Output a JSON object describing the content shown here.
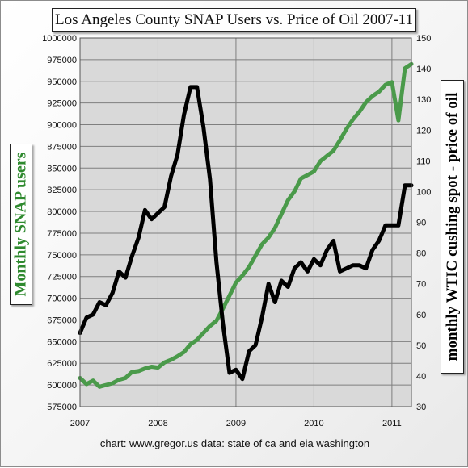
{
  "chart_data": {
    "type": "line",
    "title": "Los Angeles County SNAP Users vs. Price of Oil 2007-11",
    "ylabel_left": "Monthly SNAP users",
    "ylabel_right": "monthly WTIC cushing spot - price of oil",
    "xlabel": "",
    "credit": "chart: www.gregor.us   data: state of ca and eia washington",
    "x_tick_labels": [
      "2007",
      "2008",
      "2009",
      "2010",
      "2011"
    ],
    "y_left_ticks": [
      "575000",
      "600000",
      "625000",
      "650000",
      "675000",
      "700000",
      "725000",
      "750000",
      "775000",
      "800000",
      "825000",
      "850000",
      "875000",
      "900000",
      "925000",
      "950000",
      "975000",
      "1000000"
    ],
    "y_right_ticks": [
      "30",
      "40",
      "50",
      "60",
      "70",
      "80",
      "90",
      "100",
      "110",
      "120",
      "130",
      "140",
      "150"
    ],
    "ylim_left": [
      575000,
      1000000
    ],
    "ylim_right": [
      30,
      150
    ],
    "xlim": [
      2007.0,
      2011.25
    ],
    "grid": true,
    "colors": {
      "snap": "#4a9a4a",
      "oil": "#000000",
      "plot_bg": "#d9d9d9"
    },
    "series": [
      {
        "name": "Monthly SNAP users",
        "axis": "left",
        "x": [
          2007.0,
          2007.083,
          2007.167,
          2007.25,
          2007.333,
          2007.417,
          2007.5,
          2007.583,
          2007.667,
          2007.75,
          2007.833,
          2007.917,
          2008.0,
          2008.083,
          2008.167,
          2008.25,
          2008.333,
          2008.417,
          2008.5,
          2008.583,
          2008.667,
          2008.75,
          2008.833,
          2008.917,
          2009.0,
          2009.083,
          2009.167,
          2009.25,
          2009.333,
          2009.417,
          2009.5,
          2009.583,
          2009.667,
          2009.75,
          2009.833,
          2009.917,
          2010.0,
          2010.083,
          2010.167,
          2010.25,
          2010.333,
          2010.417,
          2010.5,
          2010.583,
          2010.667,
          2010.75,
          2010.833,
          2010.917,
          2011.0,
          2011.083,
          2011.167,
          2011.25
        ],
        "values": [
          608000,
          601000,
          605000,
          598000,
          600000,
          602000,
          606000,
          608000,
          615000,
          616000,
          619000,
          621000,
          620000,
          626000,
          629000,
          633000,
          638000,
          647000,
          652000,
          660000,
          668000,
          674000,
          688000,
          703000,
          718000,
          726000,
          736000,
          749000,
          762000,
          770000,
          781000,
          797000,
          813000,
          823000,
          838000,
          842000,
          846000,
          858000,
          864000,
          870000,
          882000,
          895000,
          906000,
          915000,
          926000,
          933000,
          938000,
          946000,
          949000,
          905000,
          965000,
          970000
        ]
      },
      {
        "name": "monthly WTIC cushing spot - price of oil",
        "axis": "right",
        "x": [
          2007.0,
          2007.083,
          2007.167,
          2007.25,
          2007.333,
          2007.417,
          2007.5,
          2007.583,
          2007.667,
          2007.75,
          2007.833,
          2007.917,
          2008.0,
          2008.083,
          2008.167,
          2008.25,
          2008.333,
          2008.417,
          2008.5,
          2008.583,
          2008.667,
          2008.75,
          2008.833,
          2008.917,
          2009.0,
          2009.083,
          2009.167,
          2009.25,
          2009.333,
          2009.417,
          2009.5,
          2009.583,
          2009.667,
          2009.75,
          2009.833,
          2009.917,
          2010.0,
          2010.083,
          2010.167,
          2010.25,
          2010.333,
          2010.417,
          2010.5,
          2010.583,
          2010.667,
          2010.75,
          2010.833,
          2010.917,
          2011.0,
          2011.083,
          2011.167,
          2011.25
        ],
        "values": [
          54,
          59,
          60,
          64,
          63,
          67,
          74,
          72,
          79,
          85,
          94,
          91,
          93,
          95,
          105,
          112,
          125,
          134,
          134,
          121,
          104,
          77,
          57,
          41,
          42,
          39,
          48,
          50,
          59,
          70,
          64,
          71,
          69,
          75,
          77,
          74,
          78,
          76,
          81,
          84,
          74,
          75,
          76,
          76,
          75,
          81,
          84,
          89,
          89,
          89,
          102,
          102
        ]
      }
    ]
  }
}
